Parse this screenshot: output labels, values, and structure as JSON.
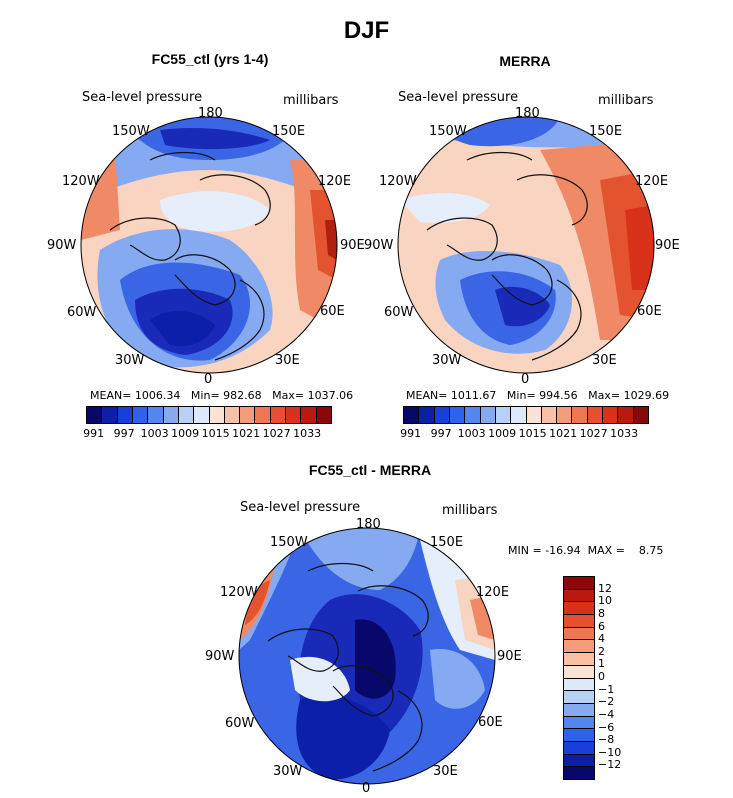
{
  "figure": {
    "season": "DJF"
  },
  "panels": [
    {
      "title": "FC55_ctl (yrs 1-4)",
      "field": "Sea-level pressure",
      "units": "millibars",
      "lon_labels": {
        "n": "180",
        "ne": "150E",
        "e1": "120E",
        "e2": "90E",
        "e3": "60E",
        "se": "30E",
        "s": "0",
        "sw": "30W",
        "w3": "60W",
        "w2": "90W",
        "w1": "120W",
        "nw": "150W"
      },
      "stats": {
        "mean_label": "MEAN=",
        "mean": "1006.34",
        "min_label": "Min=",
        "min": "982.68",
        "max_label": "Max=",
        "max": "1037.06"
      }
    },
    {
      "title": "MERRA",
      "field": "Sea-level pressure",
      "units": "millibars",
      "lon_labels": {
        "n": "180",
        "ne": "150E",
        "e1": "120E",
        "e2": "90E",
        "e3": "60E",
        "se": "30E",
        "s": "0",
        "sw": "30W",
        "w3": "60W",
        "w2": "90W",
        "w1": "120W",
        "nw": "150W"
      },
      "stats": {
        "mean_label": "MEAN=",
        "mean": "1011.67",
        "min_label": "Min=",
        "min": "994.56",
        "max_label": "Max=",
        "max": "1029.69"
      }
    },
    {
      "title": "FC55_ctl - MERRA",
      "field": "Sea-level pressure",
      "units": "millibars",
      "lon_labels": {
        "n": "180",
        "ne": "150E",
        "e1": "120E",
        "e2": "90E",
        "e3": "60E",
        "se": "30E",
        "s": "0",
        "sw": "30W",
        "w3": "60W",
        "w2": "90W",
        "w1": "120W",
        "nw": "150W"
      },
      "stats": {
        "min_label": "MIN =",
        "min": "-16.94",
        "max_label": "MAX =",
        "max": "8.75"
      }
    }
  ],
  "abs_colorbar": {
    "labels": [
      "991",
      "997",
      "1003",
      "1009",
      "1015",
      "1021",
      "1027",
      "1033"
    ],
    "colors": [
      "#08086b",
      "#0b1fa8",
      "#1840d8",
      "#2e62ec",
      "#5586f0",
      "#86aaf2",
      "#b8cff6",
      "#dde9f8",
      "#fbe2d2",
      "#f8c0a4",
      "#f59d7a",
      "#f07552",
      "#e84f30",
      "#d8321a",
      "#b81a10",
      "#8a0808"
    ]
  },
  "diff_colorbar": {
    "labels": [
      "12",
      "10",
      "8",
      "6",
      "4",
      "2",
      "1",
      "0",
      "−1",
      "−2",
      "−4",
      "−6",
      "−8",
      "−10",
      "−12"
    ],
    "colors": [
      "#8a0808",
      "#b81a10",
      "#d8321a",
      "#e84f30",
      "#f07552",
      "#f59d7a",
      "#f8c0a4",
      "#fbe2d2",
      "#dde9f8",
      "#b8cff6",
      "#86aaf2",
      "#5586f0",
      "#2e62ec",
      "#1840d8",
      "#0b1fa8",
      "#08086b"
    ]
  },
  "colors": {
    "deep_blue": "#1a2ab8",
    "mid_blue": "#3a66e6",
    "light_blue": "#a9c6f4",
    "pale": "#e6eefb",
    "pale_red": "#f9d4c0",
    "mid_red": "#f08a66",
    "red": "#e4532f",
    "dark_red": "#b0200e",
    "coast": "#111111"
  }
}
